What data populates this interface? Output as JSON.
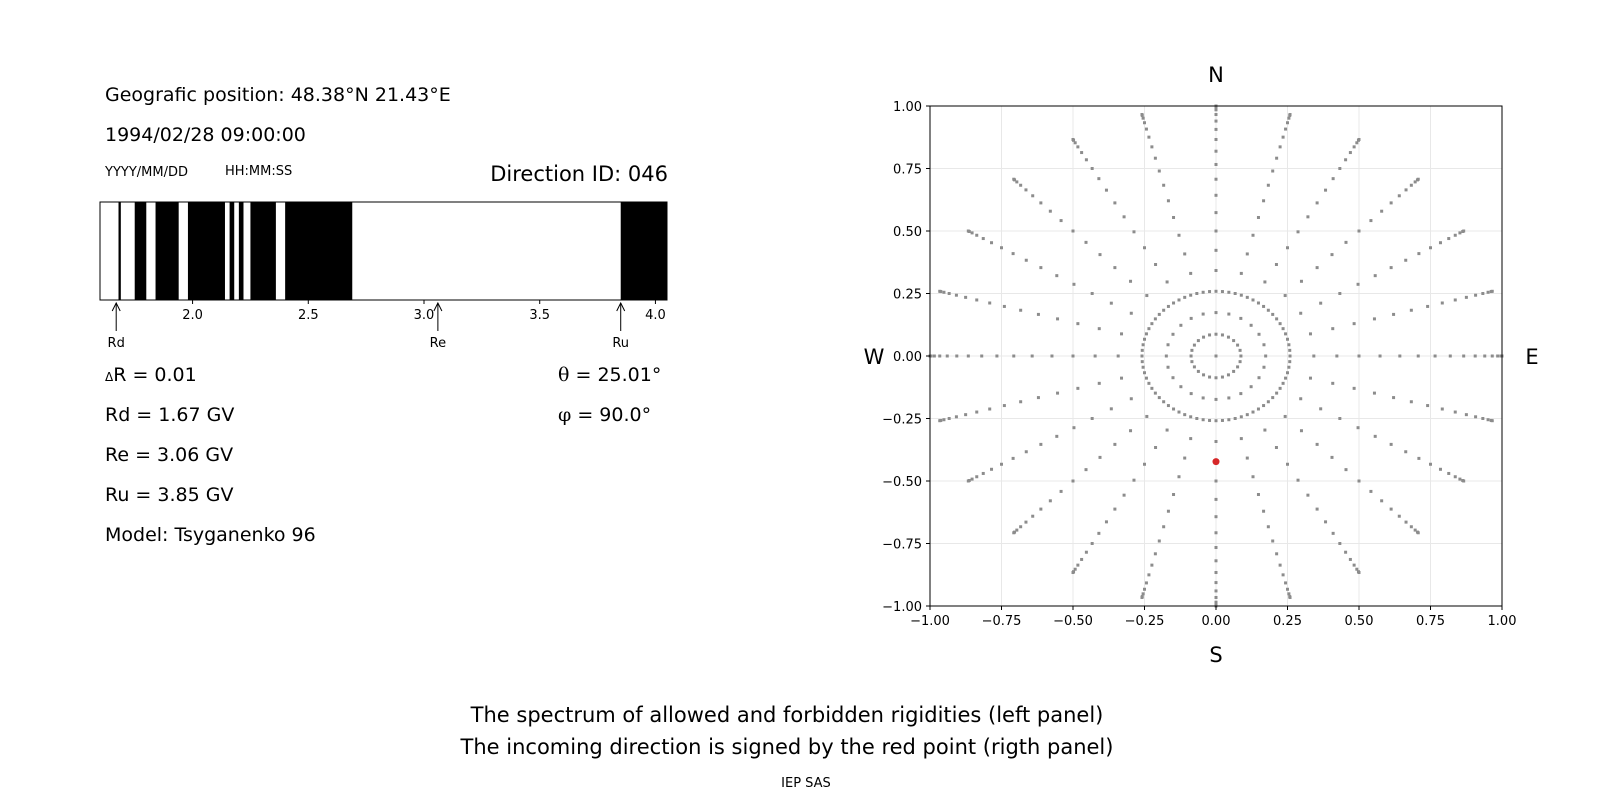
{
  "left_panel": {
    "position_line": "Geografic position: 48.38°N 21.43°E",
    "datetime": "1994/02/28 09:00:00",
    "date_format": "YYYY/MM/DD",
    "time_format": "HH:MM:SS",
    "direction_id": "Direction ID: 046",
    "stats": {
      "delta_r_symbol": "Δ",
      "delta_r": "R = 0.01",
      "rd": "Rd = 1.67 GV",
      "re": "Re = 3.06 GV",
      "ru": "Ru = 3.85 GV",
      "model": "Model: Tsyganenko 96",
      "theta_symbol": "θ",
      "theta": " = 25.01°",
      "phi_symbol": "φ",
      "phi": " = 90.0°"
    }
  },
  "right_panel": {
    "compass": {
      "n": "N",
      "s": "S",
      "w": "W",
      "e": "E"
    }
  },
  "caption": {
    "line1": "The spectrum of allowed and forbidden rigidities (left panel)",
    "line2": "The incoming direction is signed by the red point (rigth panel)",
    "credit": "IEP SAS"
  },
  "colors": {
    "forbidden": "#000000",
    "allowed": "#ffffff",
    "grid_point": "#8c8c8c",
    "direction_point": "#d62728",
    "grid_line": "#e8e8e8"
  },
  "chart_data": [
    {
      "type": "bar",
      "description_of_encoding": "rigidity spectrum; black = forbidden, white = allowed",
      "xlim": [
        1.6,
        4.05
      ],
      "xticks": [
        "2.0",
        "2.5",
        "3.0",
        "3.5",
        "4.0"
      ],
      "xtick_values": [
        2.0,
        2.5,
        3.0,
        3.5,
        4.0
      ],
      "forbidden_intervals": [
        [
          1.68,
          1.69
        ],
        [
          1.75,
          1.8
        ],
        [
          1.84,
          1.94
        ],
        [
          1.98,
          2.14
        ],
        [
          2.16,
          2.18
        ],
        [
          2.2,
          2.22
        ],
        [
          2.25,
          2.36
        ],
        [
          2.4,
          2.69
        ],
        [
          3.85,
          4.05
        ]
      ],
      "markers": [
        {
          "label": "Rd",
          "value": 1.67
        },
        {
          "label": "Re",
          "value": 3.06
        },
        {
          "label": "Ru",
          "value": 3.85
        }
      ]
    },
    {
      "type": "scatter",
      "xlim": [
        -1.0,
        1.0
      ],
      "ylim": [
        -1.0,
        1.0
      ],
      "xticks": [
        "−1.00",
        "−0.75",
        "−0.50",
        "−0.25",
        "0.00",
        "0.25",
        "0.50",
        "0.75",
        "1.00"
      ],
      "yticks": [
        "−1.00",
        "−0.75",
        "−0.50",
        "−0.25",
        "0.00",
        "0.25",
        "0.50",
        "0.75",
        "1.00"
      ],
      "tick_values": [
        -1.0,
        -0.75,
        -0.5,
        -0.25,
        0.0,
        0.25,
        0.5,
        0.75,
        1.0
      ],
      "grid": true,
      "grid_series": {
        "name": "",
        "zenith_deg": [
          0,
          5,
          10,
          15,
          20,
          25,
          30,
          35,
          40,
          45,
          50,
          55,
          60,
          65,
          70,
          75,
          80,
          85,
          90
        ],
        "azimuth_step_deg": 15,
        "full_ring_zenith_deg": 15,
        "full_ring_step_deg": 5
      },
      "direction_point": {
        "x": 0.0,
        "y": -0.4226,
        "theta_deg": 25.01,
        "phi_deg": 90.0
      }
    }
  ]
}
